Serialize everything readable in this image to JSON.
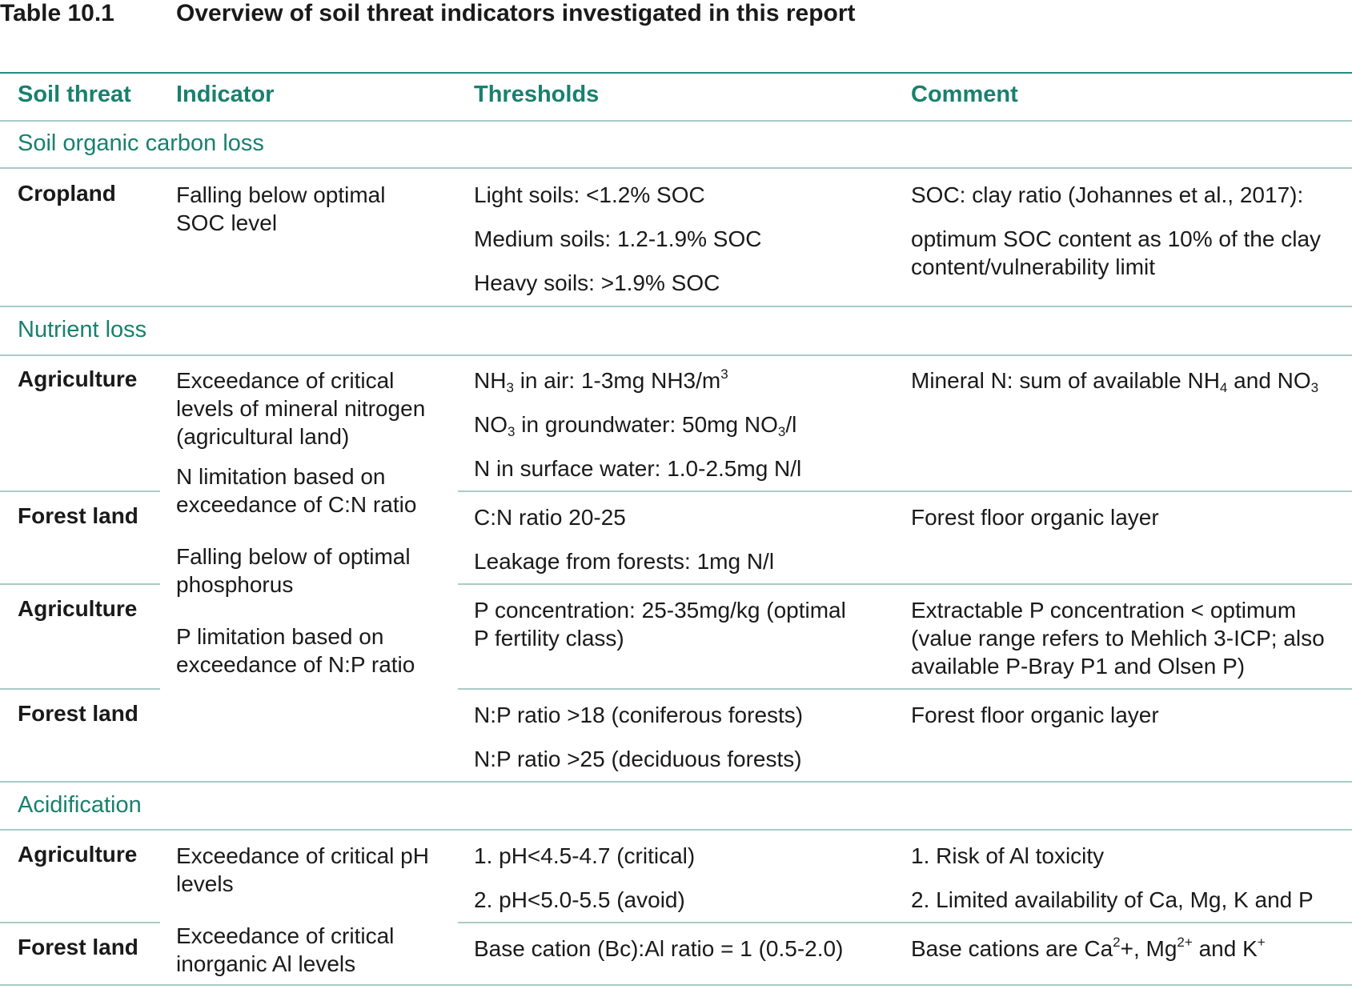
{
  "caption": {
    "label": "Table 10.1",
    "title": "Overview of soil threat indicators investigated in this report"
  },
  "headers": {
    "threat": "Soil threat",
    "indicator": "Indicator",
    "thresholds": "Thresholds",
    "comment": "Comment"
  },
  "sections": {
    "soc": "Soil organic carbon loss",
    "nutrient": "Nutrient loss",
    "acid": "Acidification"
  },
  "soc_row": {
    "threat": "Cropland",
    "indicator": [
      "Falling below optimal",
      "SOC level"
    ],
    "thresholds": [
      "Light soils: <1.2% SOC",
      "Medium soils: 1.2-1.9% SOC",
      "Heavy soils: >1.9% SOC"
    ],
    "comment": [
      "SOC: clay ratio (Johannes et al., 2017):",
      "optimum SOC content as 10% of the clay",
      "content/vulnerability limit"
    ]
  },
  "nutrient_rows": {
    "r1_threat": "Agriculture",
    "r2_threat": "Forest land",
    "r3_threat": "Agriculture",
    "r4_threat": "Forest land",
    "indicators": [
      "Exceedance of critical",
      "levels of mineral nitrogen",
      "(agricultural land)",
      "N limitation based on",
      "exceedance of C:N ratio",
      "Falling below of optimal",
      "phosphorus",
      "P limitation based on",
      "exceedance of N:P ratio"
    ],
    "r1_th1_pre": "NH",
    "r1_th1_sub": "3",
    "r1_th1_mid": " in air: 1-3mg NH3/m",
    "r1_th1_sup": "3",
    "r1_th2_pre": "NO",
    "r1_th2_sub": "3",
    "r1_th2_mid": " in groundwater: 50mg NO",
    "r1_th2_sub2": "3",
    "r1_th2_post": "/l",
    "r1_th3": "N in surface water: 1.0-2.5mg N/l",
    "r1_c_pre": "Mineral N: sum of available NH",
    "r1_c_sub": "4",
    "r1_c_mid": " and NO",
    "r1_c_sub2": "3",
    "r2_th": [
      "C:N ratio 20-25",
      "Leakage from forests: 1mg N/l"
    ],
    "r2_c": "Forest floor organic layer",
    "r3_th": [
      "P concentration: 25-35mg/kg (optimal",
      "P fertility class)"
    ],
    "r3_c": [
      "Extractable P concentration < optimum",
      "(value range refers to Mehlich 3-ICP; also",
      "available P-Bray P1 and Olsen P)"
    ],
    "r4_th": [
      "N:P ratio >18 (coniferous forests)",
      "N:P ratio >25 (deciduous forests)"
    ],
    "r4_c": "Forest floor organic layer"
  },
  "acid_rows": {
    "r1_threat": "Agriculture",
    "r2_threat": "Forest land",
    "indicators": [
      "Exceedance of critical pH",
      "levels",
      "Exceedance of critical",
      "inorganic Al levels"
    ],
    "r1_th": [
      "1. pH<4.5-4.7 (critical)",
      "2. pH<5.0-5.5 (avoid)"
    ],
    "r1_c": [
      "1. Risk of Al toxicity",
      "2. Limited availability of Ca, Mg, K and P"
    ],
    "r2_th": "Base cation (Bc):Al ratio = 1 (0.5-2.0)",
    "r2_c_pre": "Base cations are Ca",
    "r2_c_sup1": "2",
    "r2_c_mid1": "+, Mg",
    "r2_c_sup2": "2+",
    "r2_c_mid2": " and K",
    "r2_c_sup3": "+"
  }
}
